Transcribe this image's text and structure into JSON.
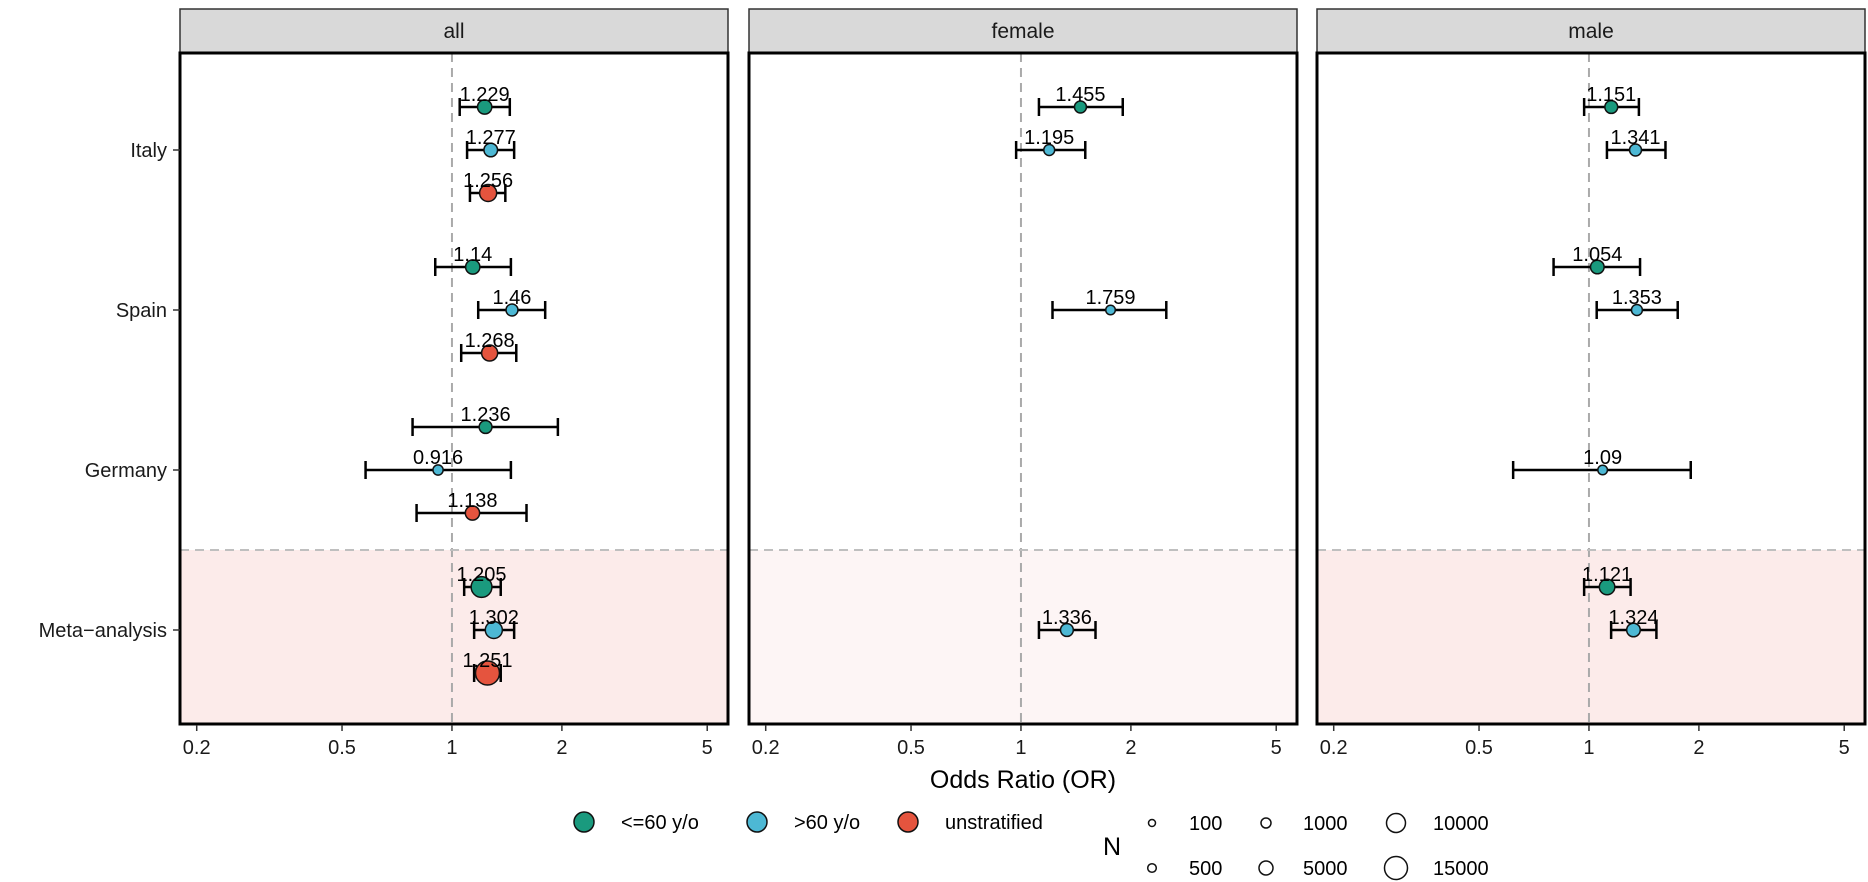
{
  "chart_data": {
    "type": "scatter",
    "subtype": "forest-plot",
    "xlabel": "Odds Ratio (OR)",
    "x_scale": "log",
    "xlim": [
      0.18,
      5.7
    ],
    "x_ticks": [
      0.2,
      0.5,
      1,
      2,
      5
    ],
    "x_tick_labels": [
      "0.2",
      "0.5",
      "1",
      "2",
      "5"
    ],
    "reference_line": 1,
    "categories": [
      "Italy",
      "Spain",
      "Germany",
      "Meta-analysis"
    ],
    "category_labels": [
      "Italy",
      "Spain",
      "Germany",
      "Meta−analysis"
    ],
    "highlighted_category": "Meta-analysis",
    "panels": [
      "all",
      "female",
      "male"
    ],
    "series": [
      {
        "name": "<=60 y/o",
        "color": "#1a9a7e"
      },
      {
        "name": ">60 y/o",
        "color": "#4db8d4"
      },
      {
        "name": "unstratified",
        "color": "#e5543e"
      }
    ],
    "size_legend_title": "N",
    "size_legend": [
      {
        "label": "100",
        "n": 100
      },
      {
        "label": "500",
        "n": 500
      },
      {
        "label": "1000",
        "n": 1000
      },
      {
        "label": "5000",
        "n": 5000
      },
      {
        "label": "10000",
        "n": 10000
      },
      {
        "label": "15000",
        "n": 15000
      }
    ],
    "points": [
      {
        "panel": "all",
        "category": "Italy",
        "series": "<=60 y/o",
        "or": 1.229,
        "label": "1.229",
        "lo": 1.05,
        "hi": 1.44,
        "n": 3000
      },
      {
        "panel": "all",
        "category": "Italy",
        "series": ">60 y/o",
        "or": 1.277,
        "label": "1.277",
        "lo": 1.1,
        "hi": 1.48,
        "n": 2500
      },
      {
        "panel": "all",
        "category": "Italy",
        "series": "unstratified",
        "or": 1.256,
        "label": "1.256",
        "lo": 1.12,
        "hi": 1.4,
        "n": 5500
      },
      {
        "panel": "all",
        "category": "Spain",
        "series": "<=60 y/o",
        "or": 1.14,
        "label": "1.14",
        "lo": 0.9,
        "hi": 1.45,
        "n": 3000
      },
      {
        "panel": "all",
        "category": "Spain",
        "series": ">60 y/o",
        "or": 1.46,
        "label": "1.46",
        "lo": 1.18,
        "hi": 1.8,
        "n": 1500
      },
      {
        "panel": "all",
        "category": "Spain",
        "series": "unstratified",
        "or": 1.268,
        "label": "1.268",
        "lo": 1.06,
        "hi": 1.5,
        "n": 4500
      },
      {
        "panel": "all",
        "category": "Germany",
        "series": "<=60 y/o",
        "or": 1.236,
        "label": "1.236",
        "lo": 0.78,
        "hi": 1.95,
        "n": 2000
      },
      {
        "panel": "all",
        "category": "Germany",
        "series": ">60 y/o",
        "or": 0.916,
        "label": "0.916",
        "lo": 0.58,
        "hi": 1.45,
        "n": 700
      },
      {
        "panel": "all",
        "category": "Germany",
        "series": "unstratified",
        "or": 1.138,
        "label": "1.138",
        "lo": 0.8,
        "hi": 1.6,
        "n": 3000
      },
      {
        "panel": "all",
        "category": "Meta-analysis",
        "series": "<=60 y/o",
        "or": 1.205,
        "label": "1.205",
        "lo": 1.08,
        "hi": 1.36,
        "n": 10000
      },
      {
        "panel": "all",
        "category": "Meta-analysis",
        "series": ">60 y/o",
        "or": 1.302,
        "label": "1.302",
        "lo": 1.15,
        "hi": 1.48,
        "n": 5500
      },
      {
        "panel": "all",
        "category": "Meta-analysis",
        "series": "unstratified",
        "or": 1.251,
        "label": "1.251",
        "lo": 1.15,
        "hi": 1.36,
        "n": 15000
      },
      {
        "panel": "female",
        "category": "Italy",
        "series": "<=60 y/o",
        "or": 1.455,
        "label": "1.455",
        "lo": 1.12,
        "hi": 1.9,
        "n": 1500
      },
      {
        "panel": "female",
        "category": "Italy",
        "series": ">60 y/o",
        "or": 1.195,
        "label": "1.195",
        "lo": 0.97,
        "hi": 1.5,
        "n": 1000
      },
      {
        "panel": "female",
        "category": "Spain",
        "series": ">60 y/o",
        "or": 1.759,
        "label": "1.759",
        "lo": 1.22,
        "hi": 2.5,
        "n": 500
      },
      {
        "panel": "female",
        "category": "Meta-analysis",
        "series": ">60 y/o",
        "or": 1.336,
        "label": "1.336",
        "lo": 1.12,
        "hi": 1.6,
        "n": 2000
      },
      {
        "panel": "male",
        "category": "Italy",
        "series": "<=60 y/o",
        "or": 1.151,
        "label": "1.151",
        "lo": 0.97,
        "hi": 1.37,
        "n": 2000
      },
      {
        "panel": "male",
        "category": "Italy",
        "series": ">60 y/o",
        "or": 1.341,
        "label": "1.341",
        "lo": 1.12,
        "hi": 1.62,
        "n": 1500
      },
      {
        "panel": "male",
        "category": "Spain",
        "series": "<=60 y/o",
        "or": 1.054,
        "label": "1.054",
        "lo": 0.8,
        "hi": 1.38,
        "n": 2500
      },
      {
        "panel": "male",
        "category": "Spain",
        "series": ">60 y/o",
        "or": 1.353,
        "label": "1.353",
        "lo": 1.05,
        "hi": 1.75,
        "n": 1000
      },
      {
        "panel": "male",
        "category": "Germany",
        "series": ">60 y/o",
        "or": 1.09,
        "label": "1.09",
        "lo": 0.62,
        "hi": 1.9,
        "n": 500
      },
      {
        "panel": "male",
        "category": "Meta-analysis",
        "series": "<=60 y/o",
        "or": 1.121,
        "label": "1.121",
        "lo": 0.97,
        "hi": 1.3,
        "n": 4000
      },
      {
        "panel": "male",
        "category": "Meta-analysis",
        "series": ">60 y/o",
        "or": 1.324,
        "label": "1.324",
        "lo": 1.15,
        "hi": 1.53,
        "n": 2500
      }
    ]
  }
}
